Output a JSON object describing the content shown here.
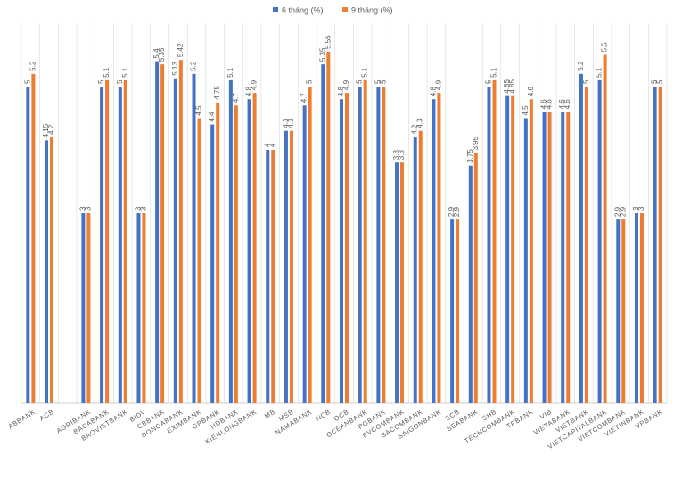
{
  "chart_data": {
    "type": "bar",
    "title": "",
    "xlabel": "",
    "ylabel": "",
    "ylim": [
      0,
      6.0
    ],
    "grid": "vertical-category-lines",
    "legend_position": "top-center",
    "categories": [
      "ABBANK",
      "ACB",
      "",
      "AGRIBANK",
      "BACABANK",
      "BAOVIETBANK",
      "BIDV",
      "CBBANK",
      "DONGABANK",
      "EXIMBANK",
      "GPBANK",
      "HDBANK",
      "KIENLONGBANK",
      "MB",
      "MSB",
      "NAMABANK",
      "NCB",
      "OCB",
      "OCEANBANK",
      "PGBANK",
      "PVCOMBANK",
      "SACOMBANK",
      "SAIGONBANK",
      "SCB",
      "SEABANK",
      "SHB",
      "TECHCOMBANK",
      "TPBANK",
      "VIB",
      "VIETABANK",
      "VIETBANK",
      "VIETCAPITALBANK",
      "VIETCOMBANK",
      "VIETINBANK",
      "VPBANK"
    ],
    "series": [
      {
        "name": "6 tháng (%)",
        "color": "#4472c4",
        "values": [
          5,
          4.15,
          null,
          3,
          5,
          5,
          3,
          5.4,
          5.13,
          5.2,
          4.4,
          5.1,
          4.8,
          4,
          4.3,
          4.7,
          5.35,
          4.8,
          5,
          5,
          3.8,
          4.2,
          4.8,
          2.9,
          3.75,
          5,
          4.85,
          4.5,
          4.6,
          4.6,
          5.2,
          5.1,
          2.9,
          3,
          5
        ],
        "labels": [
          "5",
          "4.15",
          "",
          "3",
          "5",
          "5",
          "3",
          "5.4",
          "5.13",
          "5.2",
          "4.4",
          "5.1",
          "4.8",
          "4",
          "4.3",
          "4.7",
          "5.35",
          "4.8",
          "5",
          "5",
          "3.8",
          "4.2",
          "4.8",
          "2.9",
          "3.75",
          "5",
          "4.85",
          "4.5",
          "4.6",
          "4.6",
          "5.2",
          "5.1",
          "2.9",
          "3",
          "5"
        ]
      },
      {
        "name": "9 tháng (%)",
        "color": "#ed7d31",
        "values": [
          5.2,
          4.2,
          null,
          3,
          5.1,
          5.1,
          3,
          5.35,
          5.42,
          4.5,
          4.75,
          4.7,
          4.9,
          4,
          4.3,
          5,
          5.55,
          4.9,
          5.1,
          5,
          3.8,
          4.3,
          4.9,
          2.9,
          3.95,
          5.1,
          4.85,
          4.8,
          4.6,
          4.6,
          5,
          5.5,
          2.9,
          3,
          5
        ],
        "labels": [
          "5.2",
          "4.2",
          "",
          "3",
          "5.1",
          "5.1",
          "3",
          "5.35",
          "5.42",
          "4.5",
          "4.75",
          "4.7",
          "4.9",
          "4",
          "4.3",
          "5",
          "5.55",
          "4.9",
          "5.1",
          "5",
          "3.8",
          "4.3",
          "4.9",
          "2.9",
          "3.95",
          "5.1",
          "4.85",
          "4.8",
          "4.6",
          "4.6",
          "5",
          "5.5",
          "2.9",
          "3",
          "5"
        ]
      }
    ]
  }
}
